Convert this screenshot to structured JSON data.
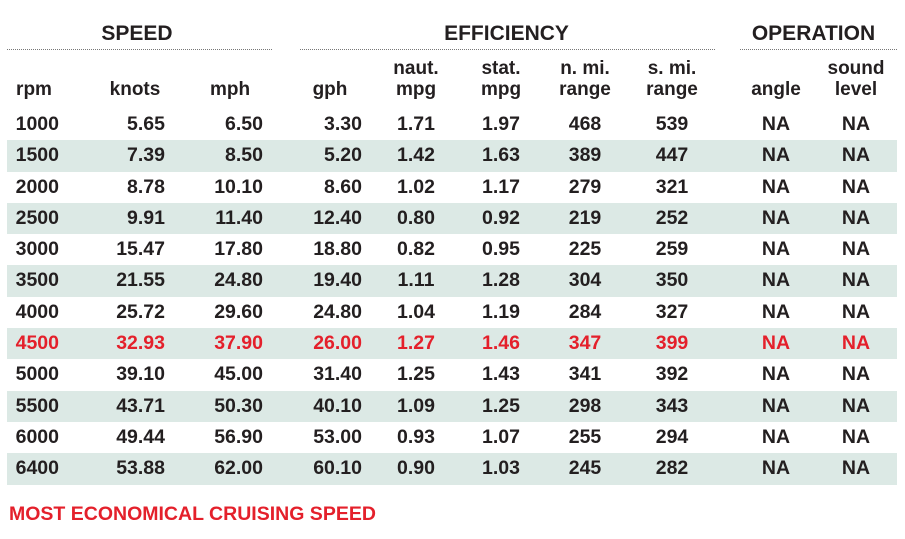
{
  "groups": {
    "speed": "SPEED",
    "efficiency": "EFFICIENCY",
    "operation": "OPERATION"
  },
  "headers": {
    "rpm": [
      "",
      "rpm"
    ],
    "knots": [
      "",
      "knots"
    ],
    "mph": [
      "",
      "mph"
    ],
    "gph": [
      "",
      "gph"
    ],
    "naut_mpg": [
      "naut.",
      "mpg"
    ],
    "stat_mpg": [
      "stat.",
      "mpg"
    ],
    "nmi_range": [
      "n. mi.",
      "range"
    ],
    "smi_range": [
      "s. mi.",
      "range"
    ],
    "angle": [
      "",
      "angle"
    ],
    "sound": [
      "sound",
      "level"
    ]
  },
  "rows": [
    [
      "1000",
      "5.65",
      "6.50",
      "3.30",
      "1.71",
      "1.97",
      "468",
      "539",
      "NA",
      "NA"
    ],
    [
      "1500",
      "7.39",
      "8.50",
      "5.20",
      "1.42",
      "1.63",
      "389",
      "447",
      "NA",
      "NA"
    ],
    [
      "2000",
      "8.78",
      "10.10",
      "8.60",
      "1.02",
      "1.17",
      "279",
      "321",
      "NA",
      "NA"
    ],
    [
      "2500",
      "9.91",
      "11.40",
      "12.40",
      "0.80",
      "0.92",
      "219",
      "252",
      "NA",
      "NA"
    ],
    [
      "3000",
      "15.47",
      "17.80",
      "18.80",
      "0.82",
      "0.95",
      "225",
      "259",
      "NA",
      "NA"
    ],
    [
      "3500",
      "21.55",
      "24.80",
      "19.40",
      "1.11",
      "1.28",
      "304",
      "350",
      "NA",
      "NA"
    ],
    [
      "4000",
      "25.72",
      "29.60",
      "24.80",
      "1.04",
      "1.19",
      "284",
      "327",
      "NA",
      "NA"
    ],
    [
      "4500",
      "32.93",
      "37.90",
      "26.00",
      "1.27",
      "1.46",
      "347",
      "399",
      "NA",
      "NA"
    ],
    [
      "5000",
      "39.10",
      "45.00",
      "31.40",
      "1.25",
      "1.43",
      "341",
      "392",
      "NA",
      "NA"
    ],
    [
      "5500",
      "43.71",
      "50.30",
      "40.10",
      "1.09",
      "1.25",
      "298",
      "343",
      "NA",
      "NA"
    ],
    [
      "6000",
      "49.44",
      "56.90",
      "53.00",
      "0.93",
      "1.07",
      "255",
      "294",
      "NA",
      "NA"
    ],
    [
      "6400",
      "53.88",
      "62.00",
      "60.10",
      "0.90",
      "1.03",
      "245",
      "282",
      "NA",
      "NA"
    ]
  ],
  "highlight_row": 7,
  "footer": "MOST ECONOMICAL CRUISING SPEED",
  "colors": {
    "highlight": "#e4202b",
    "stripe": "#dce9e5",
    "text": "#231f20"
  }
}
